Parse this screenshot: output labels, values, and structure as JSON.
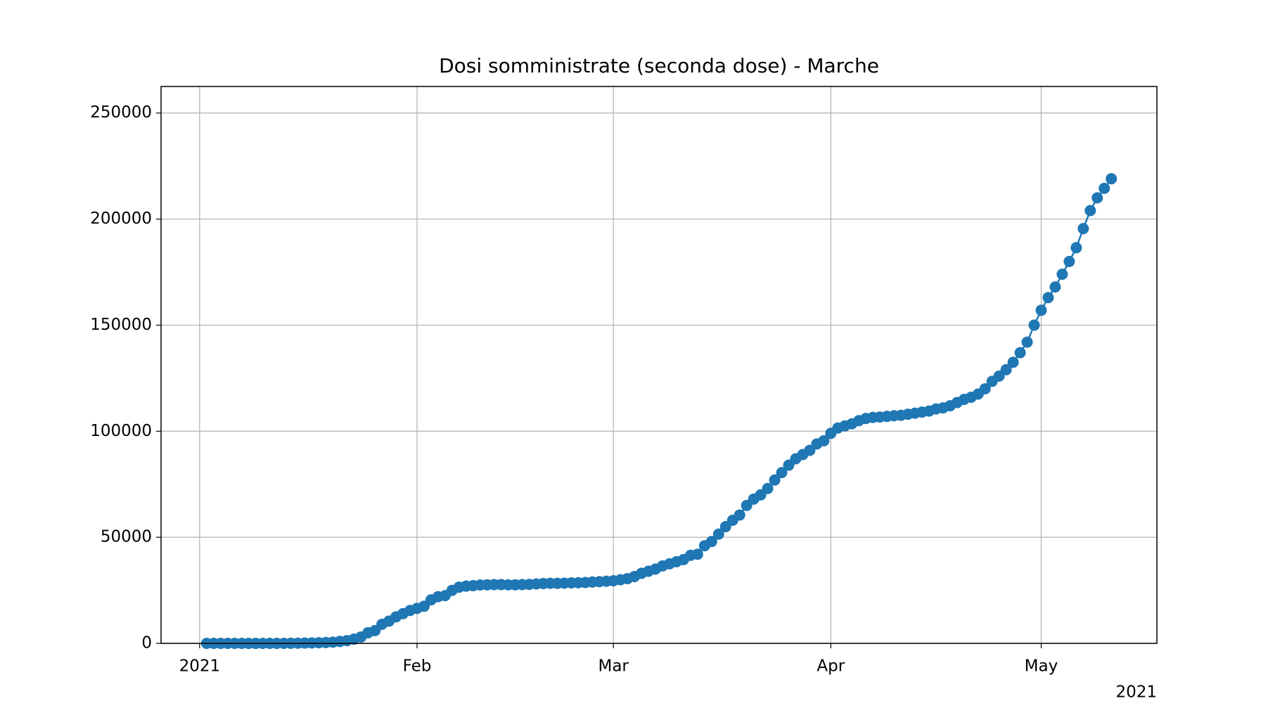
{
  "chart_data": {
    "type": "line",
    "title": "Dosi somministrate (seconda dose) - Marche",
    "x_offset_label": "2021",
    "x": [
      1,
      2,
      3,
      4,
      5,
      6,
      7,
      8,
      9,
      10,
      11,
      12,
      13,
      14,
      15,
      16,
      17,
      18,
      19,
      20,
      21,
      22,
      23,
      24,
      25,
      26,
      27,
      28,
      29,
      30,
      31,
      32,
      33,
      34,
      35,
      36,
      37,
      38,
      39,
      40,
      41,
      42,
      43,
      44,
      45,
      46,
      47,
      48,
      49,
      50,
      51,
      52,
      53,
      54,
      55,
      56,
      57,
      58,
      59,
      60,
      61,
      62,
      63,
      64,
      65,
      66,
      67,
      68,
      69,
      70,
      71,
      72,
      73,
      74,
      75,
      76,
      77,
      78,
      79,
      80,
      81,
      82,
      83,
      84,
      85,
      86,
      87,
      88,
      89,
      90,
      91,
      92,
      93,
      94,
      95,
      96,
      97,
      98,
      99,
      100,
      101,
      102,
      103,
      104,
      105,
      106,
      107,
      108,
      109,
      110,
      111,
      112,
      113,
      114,
      115,
      116,
      117,
      118,
      119,
      120,
      121,
      122,
      123,
      124,
      125,
      126,
      127,
      128,
      129,
      130
    ],
    "series": [
      {
        "name": "Marche",
        "color": "#1f77b4",
        "values": [
          0,
          0,
          0,
          0,
          0,
          0,
          0,
          0,
          0,
          0,
          0,
          0,
          50,
          100,
          150,
          200,
          300,
          400,
          600,
          900,
          1300,
          2000,
          3000,
          5000,
          6000,
          9000,
          10500,
          12500,
          14000,
          15500,
          16500,
          17500,
          20500,
          22000,
          22500,
          25000,
          26500,
          27000,
          27200,
          27500,
          27600,
          27700,
          27700,
          27600,
          27600,
          27700,
          27800,
          28000,
          28200,
          28300,
          28300,
          28400,
          28500,
          28600,
          28700,
          28900,
          29100,
          29300,
          29500,
          30000,
          30500,
          31500,
          33000,
          34000,
          35000,
          36500,
          37500,
          38500,
          39500,
          41500,
          42000,
          46000,
          48000,
          51500,
          55000,
          58000,
          60500,
          65000,
          68000,
          70000,
          73000,
          77000,
          80500,
          84000,
          87000,
          89000,
          91000,
          94000,
          95500,
          99000,
          101500,
          102500,
          103500,
          105000,
          106000,
          106500,
          106700,
          107000,
          107300,
          107500,
          108000,
          108500,
          109000,
          109500,
          110500,
          111000,
          112000,
          113500,
          115000,
          116000,
          117500,
          120000,
          123500,
          126000,
          129000,
          132500,
          137000,
          142000,
          150000,
          157000,
          163000,
          168000,
          174000,
          180000,
          186500,
          195500,
          204000,
          210000,
          214500,
          219000
        ]
      }
    ],
    "xlim": [
      -5.5,
      136.5
    ],
    "xticks": [
      {
        "value": 0,
        "label": "2021"
      },
      {
        "value": 31,
        "label": "Feb"
      },
      {
        "value": 59,
        "label": "Mar"
      },
      {
        "value": 90,
        "label": "Apr"
      },
      {
        "value": 120,
        "label": "May"
      }
    ],
    "ylim": [
      0,
      262500
    ],
    "yticks": [
      0,
      50000,
      100000,
      150000,
      200000,
      250000
    ],
    "grid": true
  }
}
